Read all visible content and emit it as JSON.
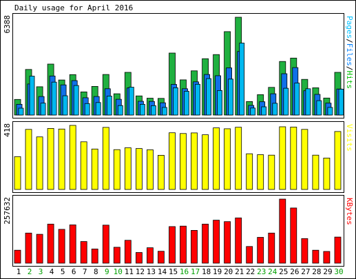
{
  "chart_data": {
    "type": "bar",
    "title": "Daily usage for April 2016",
    "categories": [
      "1",
      "2",
      "3",
      "4",
      "5",
      "6",
      "7",
      "8",
      "9",
      "10",
      "11",
      "12",
      "13",
      "14",
      "15",
      "16",
      "17",
      "18",
      "19",
      "20",
      "21",
      "22",
      "23",
      "24",
      "25",
      "26",
      "27",
      "28",
      "29",
      "30"
    ],
    "weekend_days": [
      "2",
      "3",
      "9",
      "10",
      "16",
      "17",
      "23",
      "24",
      "30"
    ],
    "panels": [
      {
        "name": "traffic",
        "max_label": "6388",
        "ylim": [
          0,
          6388
        ],
        "legend": [
          {
            "label": "Pages",
            "color": "#00c0ff"
          },
          {
            "label": "/",
            "color": "#000000"
          },
          {
            "label": "Files",
            "color": "#0080ff"
          },
          {
            "label": "/",
            "color": "#000000"
          },
          {
            "label": "Hits",
            "color": "#00c000"
          }
        ],
        "series": [
          {
            "name": "Hits",
            "color": "#20b040",
            "values": [
              1020,
              2980,
              1850,
              3330,
              2290,
              2640,
              1510,
              1870,
              2650,
              1390,
              2790,
              1250,
              1100,
              1090,
              4050,
              2300,
              2890,
              3680,
              3950,
              5450,
              6388,
              880,
              1330,
              1810,
              3500,
              3720,
              2330,
              1780,
              1110,
              2790
            ]
          },
          {
            "name": "Files",
            "color": "#1070e8",
            "values": [
              700,
              2030,
              1210,
              2550,
              1970,
              2250,
              1130,
              1210,
              1720,
              1030,
              1770,
              900,
              890,
              800,
              2000,
              1720,
              2170,
              2650,
              2570,
              3080,
              4150,
              630,
              870,
              1390,
              2700,
              3100,
              1590,
              1350,
              780,
              1700
            ]
          },
          {
            "name": "Pages",
            "color": "#00b8f0",
            "values": [
              450,
              2540,
              780,
              2150,
              1260,
              1930,
              750,
              820,
              1240,
              620,
              1820,
              700,
              610,
              500,
              1780,
              1550,
              2010,
              2380,
              1600,
              2350,
              4700,
              460,
              540,
              770,
              1750,
              2090,
              1720,
              940,
              500,
              1690
            ]
          }
        ]
      },
      {
        "name": "visits",
        "max_label": "418",
        "ylim": [
          0,
          418
        ],
        "legend": [
          {
            "label": "Visits",
            "color": "#ffff00"
          }
        ],
        "series": [
          {
            "name": "Visits",
            "color": "#ffff00",
            "values": [
              214,
              392,
              343,
              398,
              394,
              418,
              311,
              264,
              405,
              260,
              272,
              267,
              259,
              223,
              370,
              365,
              369,
              357,
              402,
              396,
              406,
              233,
              227,
              224,
              409,
              407,
              392,
              224,
              205,
              378
            ]
          }
        ]
      },
      {
        "name": "kbytes",
        "max_label": "257632",
        "ylim": [
          0,
          257632
        ],
        "legend": [
          {
            "label": "KBytes",
            "color": "#ff0000"
          }
        ],
        "series": [
          {
            "name": "KBytes",
            "color": "#ff0000",
            "values": [
              52000,
              121000,
              116000,
              157000,
              136000,
              154000,
              87000,
              57000,
              153000,
              64000,
              92000,
              43000,
              62000,
              48000,
              147000,
              149000,
              132000,
              157000,
              173000,
              167000,
              182000,
              67000,
              104000,
              121000,
              257632,
              222000,
              99000,
              52000,
              47000,
              105000
            ]
          }
        ]
      }
    ]
  }
}
